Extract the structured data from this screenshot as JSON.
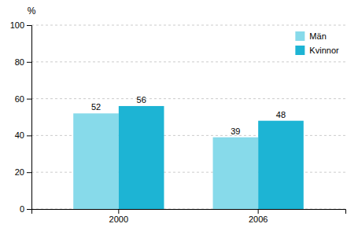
{
  "chart_data": {
    "type": "bar",
    "categories": [
      "2000",
      "2006"
    ],
    "series": [
      {
        "name": "Män",
        "color": "#87DAEA",
        "values": [
          52,
          39
        ]
      },
      {
        "name": "Kvinnor",
        "color": "#1DB4D4",
        "values": [
          56,
          48
        ]
      }
    ],
    "y_label": "%",
    "ylim": [
      0,
      100
    ],
    "yticks": [
      0,
      20,
      40,
      60,
      80,
      100
    ],
    "grid": true,
    "legend": "upper right",
    "data_labels": true
  }
}
